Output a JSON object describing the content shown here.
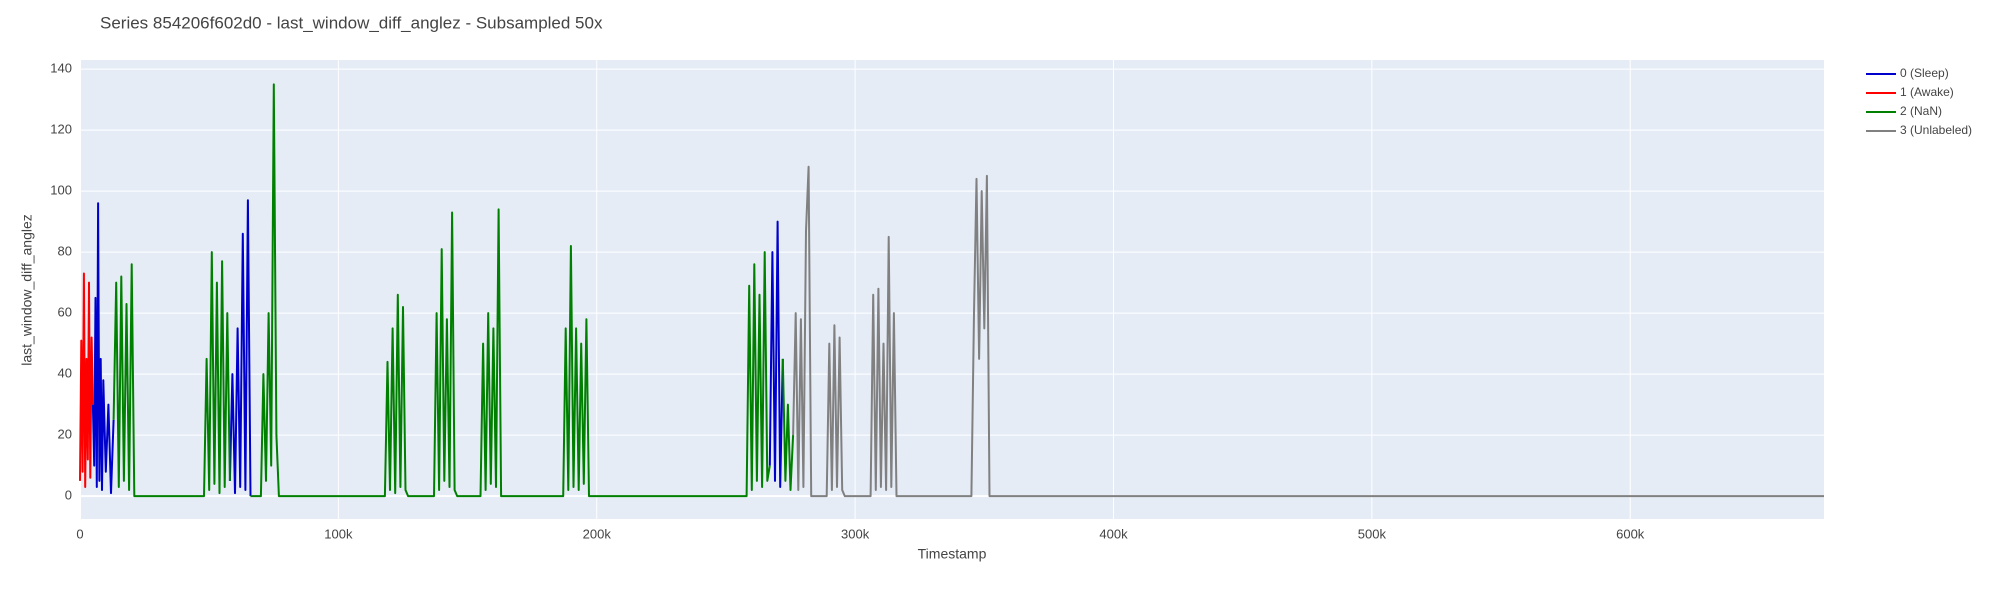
{
  "chart_data": {
    "type": "line",
    "title": "Series 854206f602d0 - last_window_diff_anglez - Subsampled 50x",
    "x_label": "Timestamp",
    "y_label": "last_window_diff_anglez",
    "xlim": [
      0,
      675000
    ],
    "ylim": [
      -7.5,
      143
    ],
    "xticks": [
      0,
      {
        "value": 100000,
        "label": "100k"
      },
      {
        "value": 200000,
        "label": "200k"
      },
      {
        "value": 300000,
        "label": "300k"
      },
      {
        "value": 400000,
        "label": "400k"
      },
      {
        "value": 500000,
        "label": "500k"
      },
      {
        "value": 600000,
        "label": "600k"
      }
    ],
    "yticks": [
      0,
      20,
      40,
      60,
      80,
      100,
      120,
      140
    ],
    "grid": true,
    "legend": "right",
    "series": [
      {
        "name": "0 (Sleep)",
        "color": "#0000cc",
        "x": [
          5000,
          5500,
          6000,
          6500,
          7000,
          7500,
          8000,
          8500,
          9000,
          10000,
          11000,
          12000,
          13000,
          null,
          58000,
          59000,
          60000,
          61000,
          62000,
          63000,
          64000,
          65000,
          66000,
          null,
          267000,
          268000,
          269000,
          270000,
          271000,
          272000
        ],
        "values": [
          30,
          10,
          65,
          3,
          96,
          5,
          45,
          2,
          38,
          8,
          30,
          1,
          25,
          null,
          5,
          40,
          1,
          55,
          3,
          86,
          2,
          97,
          0,
          null,
          10,
          80,
          5,
          90,
          3,
          45
        ]
      },
      {
        "name": "1 (Awake)",
        "color": "#ff0000",
        "x": [
          0,
          500,
          1000,
          1500,
          2000,
          2500,
          3000,
          3500,
          4000,
          4500,
          5000
        ],
        "values": [
          5,
          51,
          8,
          73,
          3,
          45,
          12,
          70,
          6,
          52,
          30
        ]
      },
      {
        "name": "2 (NaN)",
        "color": "#008000",
        "x": [
          13000,
          14000,
          15000,
          16000,
          17000,
          18000,
          19000,
          20000,
          21000,
          48000,
          49000,
          50000,
          51000,
          52000,
          53000,
          54000,
          55000,
          56000,
          57000,
          58000,
          null,
          66000,
          70000,
          71000,
          72000,
          73000,
          74000,
          75000,
          76000,
          77000,
          118000,
          119000,
          120000,
          121000,
          122000,
          123000,
          124000,
          125000,
          126000,
          127000,
          137000,
          138000,
          139000,
          140000,
          141000,
          142000,
          143000,
          144000,
          145000,
          146000,
          155000,
          156000,
          157000,
          158000,
          159000,
          160000,
          161000,
          162000,
          163000,
          187000,
          188000,
          189000,
          190000,
          191000,
          192000,
          193000,
          194000,
          195000,
          196000,
          197000,
          258000,
          259000,
          260000,
          261000,
          262000,
          263000,
          264000,
          265000,
          266000,
          267000,
          null,
          272000,
          273000,
          274000,
          275000,
          276000
        ],
        "values": [
          25,
          70,
          3,
          72,
          5,
          63,
          2,
          76,
          0,
          0,
          45,
          2,
          80,
          4,
          70,
          1,
          77,
          3,
          60,
          5,
          null,
          0,
          0,
          40,
          5,
          60,
          10,
          135,
          20,
          0,
          0,
          44,
          2,
          55,
          1,
          66,
          3,
          62,
          2,
          0,
          0,
          60,
          2,
          81,
          5,
          58,
          3,
          93,
          2,
          0,
          0,
          50,
          2,
          60,
          4,
          55,
          3,
          94,
          0,
          0,
          55,
          2,
          82,
          3,
          55,
          2,
          50,
          4,
          58,
          0,
          0,
          69,
          2,
          76,
          5,
          66,
          3,
          80,
          5,
          10,
          null,
          45,
          5,
          30,
          2,
          20
        ]
      },
      {
        "name": "3 (Unlabeled)",
        "color": "#808080",
        "x": [
          276000,
          277000,
          278000,
          279000,
          280000,
          281000,
          282000,
          283000,
          289000,
          290000,
          291000,
          292000,
          293000,
          294000,
          295000,
          296000,
          306000,
          307000,
          308000,
          309000,
          310000,
          311000,
          312000,
          313000,
          314000,
          315000,
          316000,
          345000,
          346000,
          347000,
          348000,
          349000,
          350000,
          351000,
          352000,
          675000
        ],
        "values": [
          20,
          60,
          2,
          58,
          3,
          87,
          108,
          0,
          0,
          50,
          2,
          56,
          3,
          52,
          2,
          0,
          0,
          66,
          2,
          68,
          3,
          50,
          2,
          85,
          3,
          60,
          0,
          0,
          60,
          104,
          45,
          100,
          55,
          105,
          0,
          0
        ]
      }
    ]
  }
}
